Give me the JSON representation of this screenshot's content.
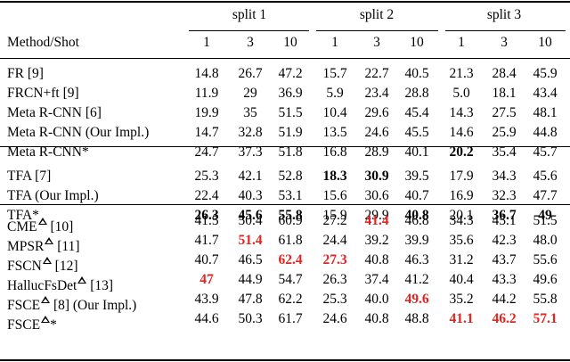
{
  "table": {
    "splits": [
      "split 1",
      "split 2",
      "split 3"
    ],
    "header": {
      "method": "Method/Shot",
      "shots": [
        "1",
        "3",
        "10",
        "1",
        "3",
        "10",
        "1",
        "3",
        "10"
      ]
    },
    "groups": [
      [
        {
          "method": "FR [9]",
          "values": [
            "14.8",
            "26.7",
            "47.2",
            "15.7",
            "22.7",
            "40.5",
            "21.3",
            "28.4",
            "45.9"
          ],
          "style": [
            "",
            "",
            "",
            "",
            "",
            "",
            "",
            "",
            ""
          ]
        },
        {
          "method": "FRCN+ft [9]",
          "values": [
            "11.9",
            "29",
            "36.9",
            "5.9",
            "23.4",
            "28.8",
            "5.0",
            "18.1",
            "43.4"
          ],
          "style": [
            "",
            "",
            "",
            "",
            "",
            "",
            "",
            "",
            ""
          ]
        },
        {
          "method": "Meta R-CNN [6]",
          "values": [
            "19.9",
            "35",
            "51.5",
            "10.4",
            "29.6",
            "45.4",
            "14.3",
            "27.5",
            "48.1"
          ],
          "style": [
            "",
            "",
            "",
            "",
            "",
            "",
            "",
            "",
            ""
          ]
        },
        {
          "method": "Meta R-CNN (Our Impl.)",
          "values": [
            "14.7",
            "32.8",
            "51.9",
            "13.5",
            "24.6",
            "45.5",
            "14.6",
            "25.9",
            "44.8"
          ],
          "style": [
            "",
            "",
            "",
            "",
            "",
            "",
            "",
            "",
            ""
          ]
        },
        {
          "method": "Meta R-CNN*",
          "values": [
            "24.7",
            "37.3",
            "51.8",
            "16.8",
            "28.9",
            "40.1",
            "20.2",
            "35.4",
            "45.7"
          ],
          "style": [
            "",
            "",
            "",
            "",
            "",
            "",
            "b",
            "",
            ""
          ]
        }
      ],
      [
        {
          "method": "TFA [7]",
          "values": [
            "25.3",
            "42.1",
            "52.8",
            "18.3",
            "30.9",
            "39.5",
            "17.9",
            "34.3",
            "45.6"
          ],
          "style": [
            "",
            "",
            "",
            "b",
            "b",
            "",
            "",
            "",
            ""
          ]
        },
        {
          "method": "TFA (Our Impl.)",
          "values": [
            "22.4",
            "40.3",
            "53.1",
            "15.6",
            "30.6",
            "40.7",
            "16.9",
            "32.3",
            "47.7"
          ],
          "style": [
            "",
            "",
            "",
            "",
            "",
            "",
            "",
            "",
            ""
          ]
        },
        {
          "method": "TFA*",
          "values": [
            "26.3",
            "45.6",
            "55.8",
            "15.9",
            "29.9",
            "40.8",
            "20.1",
            "36.7",
            "49"
          ],
          "style": [
            "b",
            "b",
            "b",
            "",
            "",
            "b",
            "",
            "b",
            "b"
          ]
        }
      ],
      [
        {
          "method": "CME",
          "ref": "[10]",
          "tri": true,
          "star": false,
          "values": [
            "41.5",
            "50.4",
            "60.9",
            "27.2",
            "41.4",
            "46.8",
            "34.3",
            "45.1",
            "51.5"
          ],
          "style": [
            "",
            "",
            "",
            "",
            "r",
            "",
            "",
            "",
            ""
          ]
        },
        {
          "method": "MPSR",
          "ref": "[11]",
          "tri": true,
          "star": false,
          "values": [
            "41.7",
            "51.4",
            "61.8",
            "24.4",
            "39.2",
            "39.9",
            "35.6",
            "42.3",
            "48.0"
          ],
          "style": [
            "",
            "r",
            "",
            "",
            "",
            "",
            "",
            "",
            ""
          ]
        },
        {
          "method": "FSCN",
          "ref": "[12]",
          "tri": true,
          "star": false,
          "values": [
            "40.7",
            "46.5",
            "62.4",
            "27.3",
            "40.8",
            "46.3",
            "31.2",
            "43.7",
            "55.6"
          ],
          "style": [
            "",
            "",
            "r",
            "r",
            "",
            "",
            "",
            "",
            ""
          ]
        },
        {
          "method": "HallucFsDet",
          "ref": "[13]",
          "tri": true,
          "star": false,
          "values": [
            "47",
            "44.9",
            "54.7",
            "26.3",
            "37.4",
            "41.2",
            "40.4",
            "43.3",
            "49.6"
          ],
          "style": [
            "r",
            "",
            "",
            "",
            "",
            "",
            "",
            "",
            ""
          ]
        },
        {
          "method": "FSCE",
          "ref": "[8] (Our Impl.)",
          "tri": true,
          "star": false,
          "values": [
            "43.9",
            "47.8",
            "62.2",
            "25.3",
            "40.0",
            "49.6",
            "35.2",
            "44.2",
            "55.8"
          ],
          "style": [
            "",
            "",
            "",
            "",
            "",
            "r",
            "",
            "",
            ""
          ]
        },
        {
          "method": "FSCE",
          "ref": "",
          "tri": true,
          "star": true,
          "values": [
            "44.6",
            "50.3",
            "61.7",
            "24.6",
            "40.8",
            "48.8",
            "41.1",
            "46.2",
            "57.1"
          ],
          "style": [
            "",
            "",
            "",
            "",
            "",
            "",
            "r",
            "r",
            "r"
          ]
        }
      ]
    ]
  }
}
